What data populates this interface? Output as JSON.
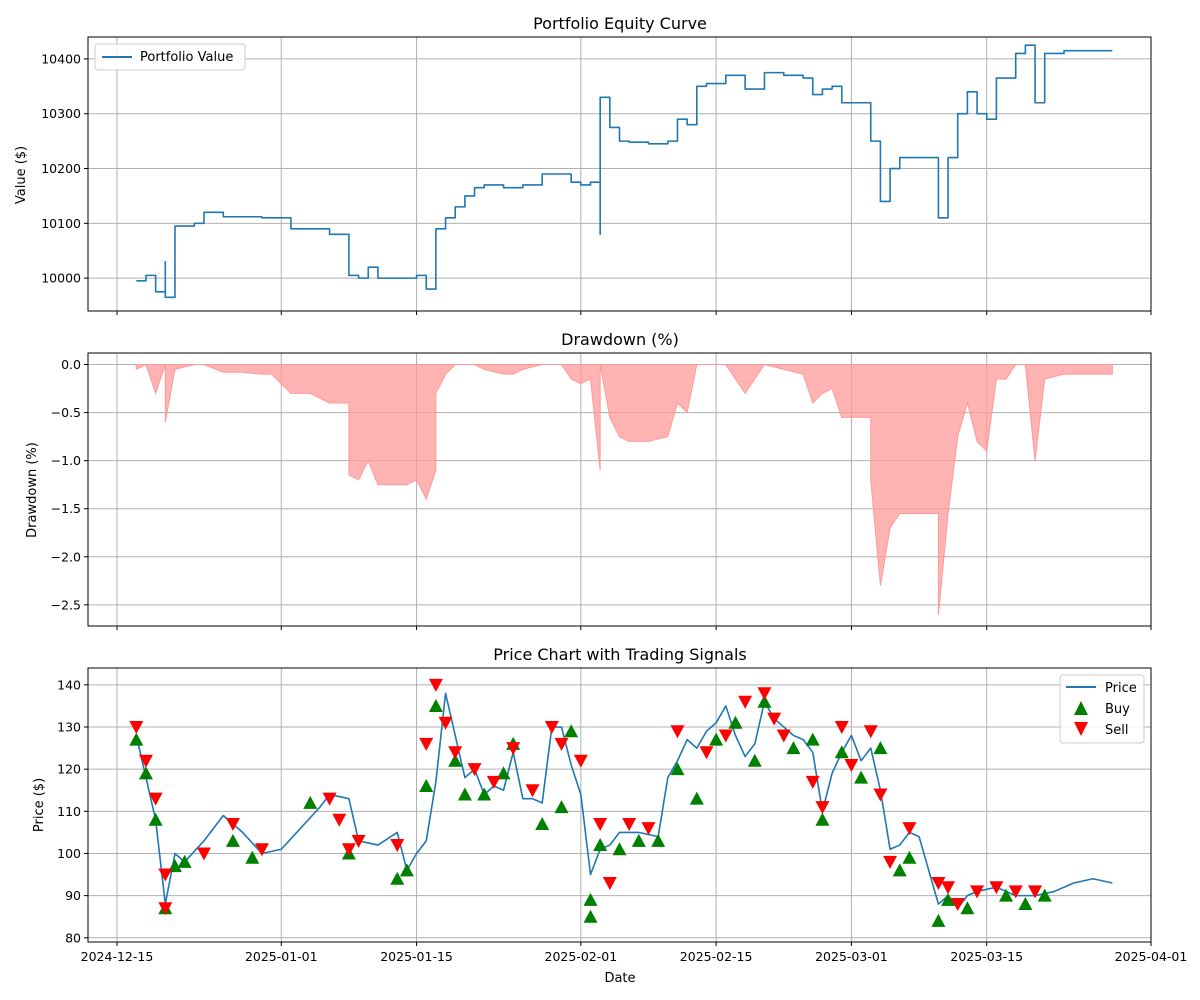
{
  "x_ticks": [
    "2024-12-15",
    "2025-01-01",
    "2025-01-15",
    "2025-02-01",
    "2025-02-15",
    "2025-03-01",
    "2025-03-15",
    "2025-04-01"
  ],
  "colors": {
    "equity": "#1f77b4",
    "drawdown": "#ff9999",
    "price": "#1f77b4",
    "buy": "#008000",
    "sell": "#ff0000",
    "grid": "#b0b0b0"
  },
  "chart_data": [
    {
      "type": "line",
      "title": "Portfolio Equity Curve",
      "xlabel": "",
      "ylabel": "Value ($)",
      "xlim": [
        "2024-12-12",
        "2025-04-01"
      ],
      "ylim": [
        9940,
        10440
      ],
      "yticks": [
        10000,
        10100,
        10200,
        10300,
        10400
      ],
      "grid": true,
      "legend": {
        "position": "upper left",
        "entries": [
          "Portfolio Value"
        ]
      },
      "series": [
        {
          "name": "Portfolio Value",
          "x": [
            "2024-12-17",
            "2024-12-18",
            "2024-12-19",
            "2024-12-20",
            "2024-12-20",
            "2024-12-21",
            "2024-12-23",
            "2024-12-24",
            "2024-12-26",
            "2024-12-28",
            "2024-12-30",
            "2024-12-31",
            "2025-01-02",
            "2025-01-04",
            "2025-01-06",
            "2025-01-08",
            "2025-01-08",
            "2025-01-09",
            "2025-01-10",
            "2025-01-11",
            "2025-01-13",
            "2025-01-14",
            "2025-01-15",
            "2025-01-16",
            "2025-01-17",
            "2025-01-17",
            "2025-01-18",
            "2025-01-19",
            "2025-01-20",
            "2025-01-21",
            "2025-01-22",
            "2025-01-24",
            "2025-01-25",
            "2025-01-26",
            "2025-01-28",
            "2025-01-30",
            "2025-01-31",
            "2025-02-01",
            "2025-02-02",
            "2025-02-03",
            "2025-02-03",
            "2025-02-04",
            "2025-02-05",
            "2025-02-06",
            "2025-02-08",
            "2025-02-10",
            "2025-02-11",
            "2025-02-12",
            "2025-02-13",
            "2025-02-14",
            "2025-02-15",
            "2025-02-16",
            "2025-02-18",
            "2025-02-20",
            "2025-02-22",
            "2025-02-24",
            "2025-02-25",
            "2025-02-26",
            "2025-02-27",
            "2025-02-28",
            "2025-03-01",
            "2025-03-02",
            "2025-03-03",
            "2025-03-03",
            "2025-03-04",
            "2025-03-05",
            "2025-03-06",
            "2025-03-08",
            "2025-03-09",
            "2025-03-10",
            "2025-03-10",
            "2025-03-11",
            "2025-03-12",
            "2025-03-13",
            "2025-03-14",
            "2025-03-15",
            "2025-03-16",
            "2025-03-17",
            "2025-03-18",
            "2025-03-19",
            "2025-03-20",
            "2025-03-21",
            "2025-03-23",
            "2025-03-25",
            "2025-03-28"
          ],
          "values": [
            9995,
            10005,
            9975,
            10030,
            9965,
            10095,
            10100,
            10120,
            10112,
            10112,
            10110,
            10110,
            10090,
            10090,
            10080,
            10080,
            10005,
            10000,
            10020,
            10000,
            10000,
            10000,
            10005,
            9980,
            10010,
            10090,
            10110,
            10130,
            10150,
            10165,
            10170,
            10165,
            10165,
            10170,
            10190,
            10190,
            10175,
            10170,
            10175,
            10080,
            10330,
            10275,
            10250,
            10248,
            10245,
            10250,
            10290,
            10280,
            10350,
            10355,
            10355,
            10370,
            10345,
            10375,
            10370,
            10365,
            10335,
            10345,
            10350,
            10320,
            10320,
            10320,
            10320,
            10250,
            10140,
            10200,
            10220,
            10220,
            10220,
            10220,
            10110,
            10220,
            10300,
            10340,
            10300,
            10290,
            10365,
            10365,
            10410,
            10425,
            10320,
            10410,
            10415,
            10415,
            10415
          ]
        }
      ]
    },
    {
      "type": "area",
      "title": "Drawdown (%)",
      "xlabel": "",
      "ylabel": "Drawdown (%)",
      "xlim": [
        "2024-12-12",
        "2025-04-01"
      ],
      "ylim": [
        -2.72,
        0.12
      ],
      "yticks": [
        0.0,
        -0.5,
        -1.0,
        -1.5,
        -2.0,
        -2.5
      ],
      "ytick_labels": [
        "0.0",
        "−0.5",
        "−1.0",
        "−1.5",
        "−2.0",
        "−2.5"
      ],
      "grid": true,
      "series": [
        {
          "name": "",
          "x": [
            "2024-12-17",
            "2024-12-18",
            "2024-12-19",
            "2024-12-20",
            "2024-12-20",
            "2024-12-21",
            "2024-12-23",
            "2024-12-24",
            "2024-12-26",
            "2024-12-28",
            "2024-12-30",
            "2024-12-31",
            "2025-01-02",
            "2025-01-04",
            "2025-01-06",
            "2025-01-08",
            "2025-01-08",
            "2025-01-09",
            "2025-01-10",
            "2025-01-11",
            "2025-01-13",
            "2025-01-14",
            "2025-01-15",
            "2025-01-16",
            "2025-01-17",
            "2025-01-17",
            "2025-01-18",
            "2025-01-19",
            "2025-01-20",
            "2025-01-21",
            "2025-01-22",
            "2025-01-24",
            "2025-01-25",
            "2025-01-26",
            "2025-01-28",
            "2025-01-30",
            "2025-01-31",
            "2025-02-01",
            "2025-02-02",
            "2025-02-03",
            "2025-02-03",
            "2025-02-04",
            "2025-02-05",
            "2025-02-06",
            "2025-02-08",
            "2025-02-10",
            "2025-02-11",
            "2025-02-12",
            "2025-02-13",
            "2025-02-14",
            "2025-02-15",
            "2025-02-16",
            "2025-02-18",
            "2025-02-20",
            "2025-02-22",
            "2025-02-24",
            "2025-02-25",
            "2025-02-26",
            "2025-02-27",
            "2025-02-28",
            "2025-03-01",
            "2025-03-02",
            "2025-03-03",
            "2025-03-03",
            "2025-03-04",
            "2025-03-05",
            "2025-03-06",
            "2025-03-08",
            "2025-03-09",
            "2025-03-10",
            "2025-03-10",
            "2025-03-11",
            "2025-03-12",
            "2025-03-13",
            "2025-03-14",
            "2025-03-15",
            "2025-03-16",
            "2025-03-17",
            "2025-03-18",
            "2025-03-19",
            "2025-03-20",
            "2025-03-21",
            "2025-03-23",
            "2025-03-25",
            "2025-03-28"
          ],
          "values": [
            -0.05,
            0.0,
            -0.3,
            0.0,
            -0.6,
            -0.05,
            0.0,
            0.0,
            -0.08,
            -0.08,
            -0.1,
            -0.1,
            -0.3,
            -0.3,
            -0.4,
            -0.4,
            -1.15,
            -1.2,
            -1.0,
            -1.25,
            -1.25,
            -1.25,
            -1.2,
            -1.4,
            -1.1,
            -0.3,
            -0.1,
            0.0,
            0.0,
            0.0,
            -0.05,
            -0.1,
            -0.1,
            -0.05,
            0.0,
            0.0,
            -0.15,
            -0.2,
            -0.15,
            -1.1,
            0.0,
            -0.55,
            -0.75,
            -0.8,
            -0.8,
            -0.75,
            -0.4,
            -0.5,
            0.0,
            0.0,
            0.0,
            0.0,
            -0.3,
            0.0,
            -0.05,
            -0.1,
            -0.4,
            -0.3,
            -0.25,
            -0.55,
            -0.55,
            -0.55,
            -0.55,
            -1.2,
            -2.3,
            -1.7,
            -1.55,
            -1.55,
            -1.55,
            -1.55,
            -2.6,
            -1.55,
            -0.75,
            -0.4,
            -0.8,
            -0.9,
            -0.15,
            -0.15,
            0.0,
            0.0,
            -1.0,
            -0.15,
            -0.1,
            -0.1,
            -0.1
          ]
        }
      ]
    },
    {
      "type": "line",
      "title": "Price Chart with Trading Signals",
      "xlabel": "Date",
      "ylabel": "Price ($)",
      "xlim": [
        "2024-12-12",
        "2025-04-01"
      ],
      "ylim": [
        79,
        144
      ],
      "yticks": [
        80,
        90,
        100,
        110,
        120,
        130,
        140
      ],
      "grid": true,
      "legend": {
        "position": "upper right",
        "entries": [
          "Price",
          "Buy",
          "Sell"
        ]
      },
      "series": [
        {
          "name": "Price",
          "x": [
            "2024-12-17",
            "2024-12-18",
            "2024-12-19",
            "2024-12-20",
            "2024-12-21",
            "2024-12-22",
            "2024-12-24",
            "2024-12-26",
            "2024-12-28",
            "2024-12-30",
            "2025-01-01",
            "2025-01-03",
            "2025-01-05",
            "2025-01-06",
            "2025-01-08",
            "2025-01-09",
            "2025-01-11",
            "2025-01-13",
            "2025-01-14",
            "2025-01-15",
            "2025-01-16",
            "2025-01-17",
            "2025-01-18",
            "2025-01-19",
            "2025-01-20",
            "2025-01-21",
            "2025-01-22",
            "2025-01-23",
            "2025-01-24",
            "2025-01-25",
            "2025-01-26",
            "2025-01-27",
            "2025-01-28",
            "2025-01-29",
            "2025-01-30",
            "2025-01-31",
            "2025-02-01",
            "2025-02-02",
            "2025-02-03",
            "2025-02-04",
            "2025-02-05",
            "2025-02-07",
            "2025-02-09",
            "2025-02-10",
            "2025-02-11",
            "2025-02-12",
            "2025-02-13",
            "2025-02-14",
            "2025-02-15",
            "2025-02-16",
            "2025-02-17",
            "2025-02-18",
            "2025-02-19",
            "2025-02-20",
            "2025-02-21",
            "2025-02-23",
            "2025-02-24",
            "2025-02-25",
            "2025-02-26",
            "2025-02-27",
            "2025-02-28",
            "2025-03-01",
            "2025-03-02",
            "2025-03-03",
            "2025-03-04",
            "2025-03-05",
            "2025-03-06",
            "2025-03-07",
            "2025-03-08",
            "2025-03-09",
            "2025-03-10",
            "2025-03-11",
            "2025-03-12",
            "2025-03-13",
            "2025-03-14",
            "2025-03-16",
            "2025-03-18",
            "2025-03-20",
            "2025-03-22",
            "2025-03-24",
            "2025-03-26",
            "2025-03-28"
          ],
          "values": [
            128,
            118,
            108,
            88,
            100,
            98,
            103,
            109,
            105,
            100,
            101,
            106,
            111,
            114,
            113,
            103,
            102,
            105,
            96,
            100,
            103,
            117,
            138,
            128,
            118,
            120,
            114,
            116,
            115,
            124,
            113,
            113,
            112,
            130,
            130,
            121,
            114,
            95,
            101,
            102,
            105,
            105,
            104,
            118,
            122,
            127,
            125,
            129,
            131,
            135,
            128,
            123,
            126,
            136,
            132,
            128,
            127,
            124,
            110,
            119,
            124,
            128,
            122,
            125,
            115,
            101,
            102,
            105,
            104,
            96,
            88,
            90,
            87,
            90,
            91,
            92,
            90,
            90,
            91,
            93,
            94,
            93
          ]
        }
      ],
      "buy_signals": {
        "name": "Buy",
        "x": [
          "2024-12-17",
          "2024-12-18",
          "2024-12-19",
          "2024-12-20",
          "2024-12-21",
          "2024-12-22",
          "2024-12-27",
          "2024-12-29",
          "2025-01-04",
          "2025-01-08",
          "2025-01-13",
          "2025-01-14",
          "2025-01-16",
          "2025-01-17",
          "2025-01-19",
          "2025-01-20",
          "2025-01-22",
          "2025-01-24",
          "2025-01-25",
          "2025-01-28",
          "2025-01-30",
          "2025-01-31",
          "2025-02-02",
          "2025-02-02",
          "2025-02-03",
          "2025-02-05",
          "2025-02-07",
          "2025-02-09",
          "2025-02-11",
          "2025-02-13",
          "2025-02-15",
          "2025-02-17",
          "2025-02-19",
          "2025-02-20",
          "2025-02-23",
          "2025-02-25",
          "2025-02-26",
          "2025-02-28",
          "2025-03-02",
          "2025-03-04",
          "2025-03-06",
          "2025-03-07",
          "2025-03-10",
          "2025-03-11",
          "2025-03-13",
          "2025-03-17",
          "2025-03-19",
          "2025-03-21"
        ],
        "values": [
          127,
          119,
          108,
          87,
          97,
          98,
          103,
          99,
          112,
          100,
          94,
          96,
          116,
          135,
          122,
          114,
          114,
          119,
          126,
          107,
          111,
          129,
          85,
          89,
          102,
          101,
          103,
          103,
          120,
          113,
          127,
          131,
          122,
          136,
          125,
          127,
          108,
          124,
          118,
          125,
          96,
          99,
          84,
          89,
          87,
          90,
          88,
          90
        ]
      },
      "sell_signals": {
        "name": "Sell",
        "x": [
          "2024-12-17",
          "2024-12-18",
          "2024-12-19",
          "2024-12-20",
          "2024-12-20",
          "2024-12-24",
          "2024-12-27",
          "2024-12-30",
          "2025-01-06",
          "2025-01-07",
          "2025-01-08",
          "2025-01-09",
          "2025-01-13",
          "2025-01-16",
          "2025-01-17",
          "2025-01-18",
          "2025-01-19",
          "2025-01-21",
          "2025-01-23",
          "2025-01-25",
          "2025-01-27",
          "2025-01-29",
          "2025-01-30",
          "2025-02-01",
          "2025-02-03",
          "2025-02-04",
          "2025-02-06",
          "2025-02-08",
          "2025-02-11",
          "2025-02-14",
          "2025-02-16",
          "2025-02-18",
          "2025-02-20",
          "2025-02-21",
          "2025-02-22",
          "2025-02-25",
          "2025-02-26",
          "2025-02-28",
          "2025-03-01",
          "2025-03-03",
          "2025-03-04",
          "2025-03-05",
          "2025-03-07",
          "2025-03-10",
          "2025-03-11",
          "2025-03-12",
          "2025-03-14",
          "2025-03-16",
          "2025-03-18",
          "2025-03-20"
        ],
        "values": [
          130,
          122,
          113,
          95,
          87,
          100,
          107,
          101,
          113,
          108,
          101,
          103,
          102,
          126,
          140,
          131,
          124,
          120,
          117,
          125,
          115,
          130,
          126,
          122,
          107,
          93,
          107,
          106,
          129,
          124,
          128,
          136,
          138,
          132,
          128,
          117,
          111,
          130,
          121,
          129,
          114,
          98,
          106,
          93,
          92,
          88,
          91,
          92,
          91,
          91
        ]
      }
    }
  ]
}
